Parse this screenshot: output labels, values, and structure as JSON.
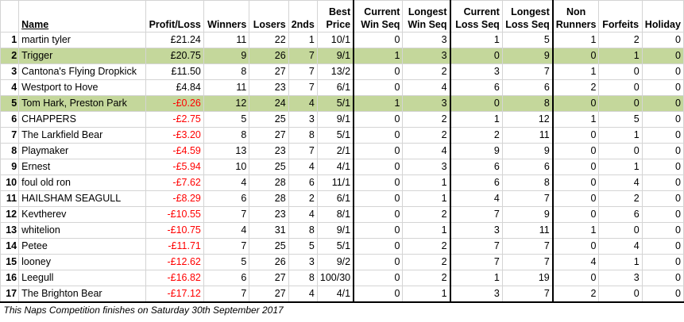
{
  "headers": {
    "name": "Name",
    "profit_loss": "Profit/Loss",
    "winners": "Winners",
    "losers": "Losers",
    "seconds": "2nds",
    "best_price": [
      "Best",
      "Price"
    ],
    "current_win_seq": [
      "Current",
      "Win Seq"
    ],
    "longest_win_seq": [
      "Longest",
      "Win Seq"
    ],
    "current_loss_seq": [
      "Current",
      "Loss Seq"
    ],
    "longest_loss_seq": [
      "Longest",
      "Loss Seq"
    ],
    "non_runners": [
      "Non",
      "Runners"
    ],
    "forfeits": "Forfeits",
    "holiday": "Holiday"
  },
  "rows": [
    {
      "rank": "1",
      "name": "martin tyler",
      "pl": "£21.24",
      "neg": false,
      "w": "11",
      "l": "22",
      "s": "1",
      "bp": "10/1",
      "cws": "0",
      "lws": "3",
      "cls": "1",
      "lls": "5",
      "nr": "1",
      "f": "2",
      "h": "0",
      "hl": false
    },
    {
      "rank": "2",
      "name": "Trigger",
      "pl": "£20.75",
      "neg": false,
      "w": "9",
      "l": "26",
      "s": "7",
      "bp": "9/1",
      "cws": "1",
      "lws": "3",
      "cls": "0",
      "lls": "9",
      "nr": "0",
      "f": "1",
      "h": "0",
      "hl": true
    },
    {
      "rank": "3",
      "name": "Cantona's Flying Dropkick",
      "pl": "£11.50",
      "neg": false,
      "w": "8",
      "l": "27",
      "s": "7",
      "bp": "13/2",
      "cws": "0",
      "lws": "2",
      "cls": "3",
      "lls": "7",
      "nr": "1",
      "f": "0",
      "h": "0",
      "hl": false
    },
    {
      "rank": "4",
      "name": "Westport to Hove",
      "pl": "£4.84",
      "neg": false,
      "w": "11",
      "l": "23",
      "s": "7",
      "bp": "6/1",
      "cws": "0",
      "lws": "4",
      "cls": "6",
      "lls": "6",
      "nr": "2",
      "f": "0",
      "h": "0",
      "hl": false
    },
    {
      "rank": "5",
      "name": "Tom Hark, Preston Park",
      "pl": "-£0.26",
      "neg": true,
      "w": "12",
      "l": "24",
      "s": "4",
      "bp": "5/1",
      "cws": "1",
      "lws": "3",
      "cls": "0",
      "lls": "8",
      "nr": "0",
      "f": "0",
      "h": "0",
      "hl": true
    },
    {
      "rank": "6",
      "name": "CHAPPERS",
      "pl": "-£2.75",
      "neg": true,
      "w": "5",
      "l": "25",
      "s": "3",
      "bp": "9/1",
      "cws": "0",
      "lws": "2",
      "cls": "1",
      "lls": "12",
      "nr": "1",
      "f": "5",
      "h": "0",
      "hl": false
    },
    {
      "rank": "7",
      "name": "The Larkfield Bear",
      "pl": "-£3.20",
      "neg": true,
      "w": "8",
      "l": "27",
      "s": "8",
      "bp": "5/1",
      "cws": "0",
      "lws": "2",
      "cls": "2",
      "lls": "11",
      "nr": "0",
      "f": "1",
      "h": "0",
      "hl": false
    },
    {
      "rank": "8",
      "name": "Playmaker",
      "pl": "-£4.59",
      "neg": true,
      "w": "13",
      "l": "23",
      "s": "7",
      "bp": "2/1",
      "cws": "0",
      "lws": "4",
      "cls": "9",
      "lls": "9",
      "nr": "0",
      "f": "0",
      "h": "0",
      "hl": false
    },
    {
      "rank": "9",
      "name": "Ernest",
      "pl": "-£5.94",
      "neg": true,
      "w": "10",
      "l": "25",
      "s": "4",
      "bp": "4/1",
      "cws": "0",
      "lws": "3",
      "cls": "6",
      "lls": "6",
      "nr": "0",
      "f": "1",
      "h": "0",
      "hl": false
    },
    {
      "rank": "10",
      "name": "foul old ron",
      "pl": "-£7.62",
      "neg": true,
      "w": "4",
      "l": "28",
      "s": "6",
      "bp": "11/1",
      "cws": "0",
      "lws": "1",
      "cls": "6",
      "lls": "8",
      "nr": "0",
      "f": "4",
      "h": "0",
      "hl": false
    },
    {
      "rank": "11",
      "name": "HAILSHAM SEAGULL",
      "pl": "-£8.29",
      "neg": true,
      "w": "6",
      "l": "28",
      "s": "2",
      "bp": "6/1",
      "cws": "0",
      "lws": "1",
      "cls": "4",
      "lls": "7",
      "nr": "0",
      "f": "2",
      "h": "0",
      "hl": false
    },
    {
      "rank": "12",
      "name": "Kevtherev",
      "pl": "-£10.55",
      "neg": true,
      "w": "7",
      "l": "23",
      "s": "4",
      "bp": "8/1",
      "cws": "0",
      "lws": "2",
      "cls": "7",
      "lls": "9",
      "nr": "0",
      "f": "6",
      "h": "0",
      "hl": false
    },
    {
      "rank": "13",
      "name": "whitelion",
      "pl": "-£10.75",
      "neg": true,
      "w": "4",
      "l": "31",
      "s": "8",
      "bp": "9/1",
      "cws": "0",
      "lws": "1",
      "cls": "3",
      "lls": "11",
      "nr": "1",
      "f": "0",
      "h": "0",
      "hl": false
    },
    {
      "rank": "14",
      "name": "Petee",
      "pl": "-£11.71",
      "neg": true,
      "w": "7",
      "l": "25",
      "s": "5",
      "bp": "5/1",
      "cws": "0",
      "lws": "2",
      "cls": "7",
      "lls": "7",
      "nr": "0",
      "f": "4",
      "h": "0",
      "hl": false
    },
    {
      "rank": "15",
      "name": "looney",
      "pl": "-£12.62",
      "neg": true,
      "w": "5",
      "l": "26",
      "s": "3",
      "bp": "9/2",
      "cws": "0",
      "lws": "2",
      "cls": "7",
      "lls": "7",
      "nr": "4",
      "f": "1",
      "h": "0",
      "hl": false
    },
    {
      "rank": "16",
      "name": "Leegull",
      "pl": "-£16.82",
      "neg": true,
      "w": "6",
      "l": "27",
      "s": "8",
      "bp": "100/30",
      "cws": "0",
      "lws": "2",
      "cls": "1",
      "lls": "19",
      "nr": "0",
      "f": "3",
      "h": "0",
      "hl": false
    },
    {
      "rank": "17",
      "name": "The Brighton Bear",
      "pl": "-£17.12",
      "neg": true,
      "w": "7",
      "l": "27",
      "s": "4",
      "bp": "4/1",
      "cws": "0",
      "lws": "1",
      "cls": "3",
      "lls": "7",
      "nr": "2",
      "f": "0",
      "h": "0",
      "hl": false
    }
  ],
  "footer": "This Naps Competition finishes on Saturday 30th September 2017",
  "colors": {
    "highlight": "#c4d79b",
    "negative": "#ff0000",
    "gridline": "#d4d4d4"
  }
}
